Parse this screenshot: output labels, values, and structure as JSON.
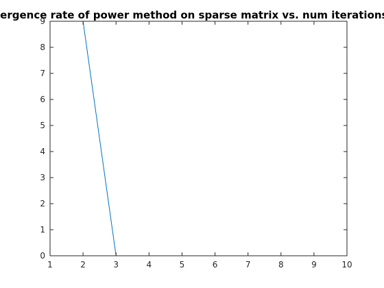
{
  "chart_data": {
    "type": "line",
    "title": "convergence rate of power method on sparse matrix vs. num iterations",
    "xlabel": "",
    "ylabel": "",
    "xlim": [
      1,
      10
    ],
    "ylim": [
      0,
      9
    ],
    "xticks": [
      1,
      2,
      3,
      4,
      5,
      6,
      7,
      8,
      9,
      10
    ],
    "yticks": [
      0,
      1,
      2,
      3,
      4,
      5,
      6,
      7,
      8,
      9
    ],
    "grid": false,
    "box": true,
    "series": [
      {
        "color": "#0072bd",
        "x": [
          1,
          2,
          3,
          4,
          5,
          6,
          7,
          8,
          9,
          10
        ],
        "y": [
          9,
          9,
          0,
          0,
          0,
          0,
          0,
          0,
          0,
          0
        ]
      }
    ]
  }
}
